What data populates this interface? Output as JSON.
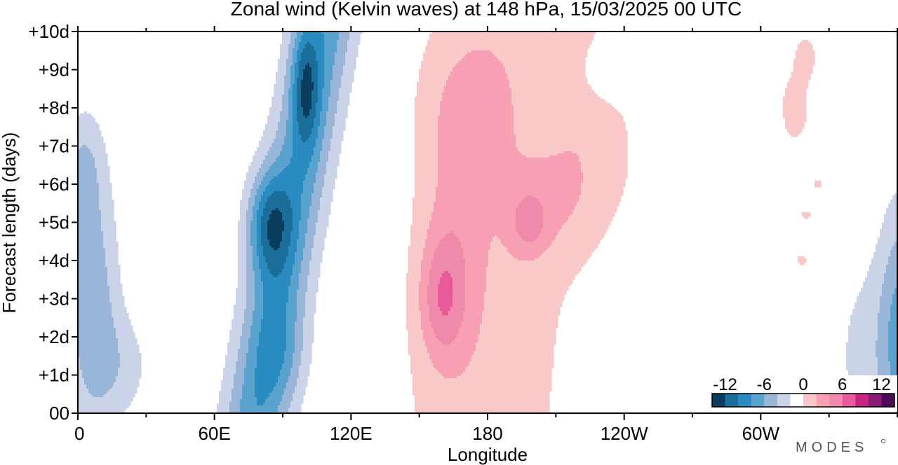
{
  "chart_data": {
    "type": "heatmap",
    "title": "Zonal wind (Kelvin waves) at 148 hPa,  15/03/2025  00 UTC",
    "xlabel": "Longitude",
    "ylabel": "Forecast length (days)",
    "x_ticks": [
      "0",
      "60E",
      "120E",
      "180",
      "120W",
      "60W"
    ],
    "x_tick_values_deg_east": [
      0,
      60,
      120,
      180,
      240,
      300
    ],
    "xlim_deg_east": [
      0,
      360
    ],
    "y_ticks": [
      "00",
      "+1d",
      "+2d",
      "+3d",
      "+4d",
      "+5d",
      "+6d",
      "+7d",
      "+8d",
      "+9d",
      "+10d"
    ],
    "ylim_days": [
      0,
      10
    ],
    "colorbar": {
      "tick_labels": [
        "-12",
        "-6",
        "0",
        "6",
        "12"
      ],
      "tick_values": [
        -12,
        -6,
        0,
        6,
        12
      ],
      "levels": [
        -14,
        -12,
        -10,
        -8,
        -6,
        -4,
        -2,
        2,
        4,
        6,
        8,
        10,
        12,
        14
      ],
      "colors": [
        "#0a3d5e",
        "#1b6e9a",
        "#2a8bc0",
        "#5ba3cf",
        "#99b6d9",
        "#cbd3e8",
        "#ffffff",
        "#f9c9c9",
        "#f7a0b4",
        "#f08aab",
        "#e95a9a",
        "#c82482",
        "#8b1a76",
        "#4e0b55"
      ]
    },
    "features": [
      {
        "kind": "negative",
        "longitude_deg_east": 85,
        "day": 5.0,
        "value": -12
      },
      {
        "kind": "negative",
        "longitude_deg_east": 100,
        "day": 8.5,
        "value": -12
      },
      {
        "kind": "negative",
        "longitude_deg_east": 5,
        "day": 3.0,
        "value": -6
      },
      {
        "kind": "negative",
        "longitude_deg_east": 355,
        "day": 2.0,
        "value": -6
      },
      {
        "kind": "positive",
        "longitude_deg_east": 160,
        "day": 3.0,
        "value": 8
      },
      {
        "kind": "positive",
        "longitude_deg_east": 200,
        "day": 4.8,
        "value": 6
      },
      {
        "kind": "positive",
        "longitude_deg_east": 175,
        "day": 6.0,
        "value": 4
      },
      {
        "kind": "positive",
        "longitude_deg_east": 315,
        "day": 8.0,
        "value": 2
      }
    ]
  },
  "brand": "MODES"
}
